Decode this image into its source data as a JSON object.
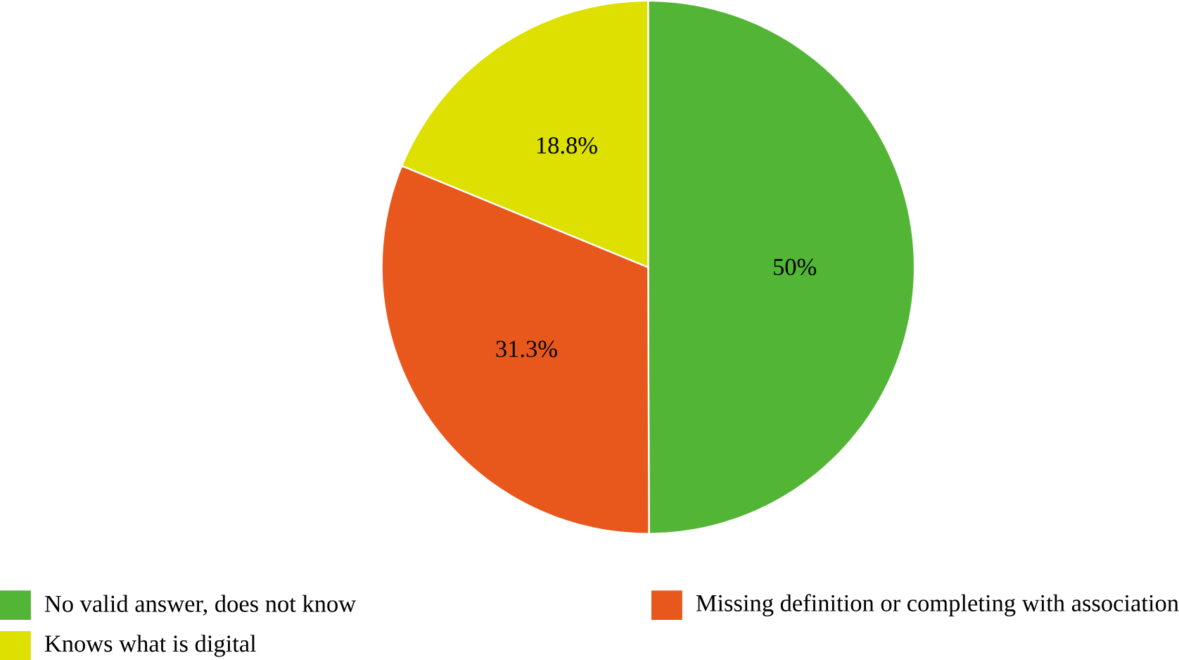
{
  "chart_data": {
    "type": "pie",
    "categories": [
      "No valid answer, does not know",
      "Missing definition or completing with association",
      "Knows what is digital"
    ],
    "values": [
      50,
      31.3,
      18.8
    ],
    "colors": [
      "#52b535",
      "#e8581c",
      "#dde000"
    ],
    "value_labels": [
      "50%",
      "31.3%",
      "18.8%"
    ],
    "legend": "bottom"
  }
}
